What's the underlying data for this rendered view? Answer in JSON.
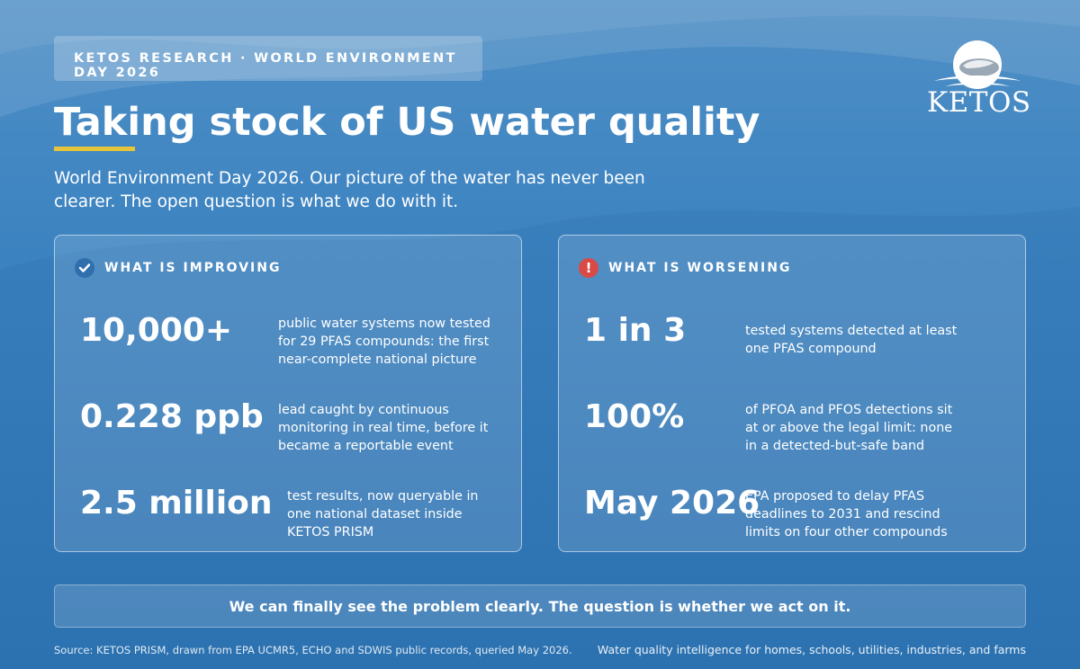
{
  "kicker": "KETOS RESEARCH · WORLD ENVIRONMENT DAY 2026",
  "logo": {
    "text": "KETOS"
  },
  "title": "Taking stock of US water quality",
  "subtitle": "World Environment Day 2026. Our picture of the water has never been clearer. The open question is what we do with it.",
  "colors": {
    "accent_underline": "#e7c53b",
    "improving_icon": "#2f6fae",
    "worsening_icon": "#d94a47"
  },
  "improving": {
    "icon": "check-icon",
    "title": "WHAT IS IMPROVING",
    "stats": [
      {
        "value": "10,000+",
        "desc": "public water systems now tested for 29 PFAS compounds: the first near-complete national picture"
      },
      {
        "value": "0.228 ppb",
        "desc": "lead caught by continuous monitoring in real time, before it became a reportable event"
      },
      {
        "value": "2.5 million",
        "desc": "test results, now queryable in one national dataset inside KETOS PRISM"
      }
    ]
  },
  "worsening": {
    "icon": "alert-icon",
    "title": "WHAT IS WORSENING",
    "stats": [
      {
        "value": "1 in 3",
        "desc": "tested systems detected at least one PFAS compound"
      },
      {
        "value": "100%",
        "desc": "of PFOA and PFOS detections sit at or above the legal limit: none in a detected-but-safe band"
      },
      {
        "value": "May 2026",
        "desc": "EPA proposed to delay PFAS deadlines to 2031 and rescind limits on four other compounds"
      }
    ]
  },
  "cta": "We can finally see the problem clearly. The question is whether we act on it.",
  "footer": {
    "source": "Source: KETOS PRISM, drawn from EPA UCMR5, ECHO and SDWIS public records, queried May 2026.",
    "tagline": "Water quality intelligence for homes, schools, utilities, industries, and farms"
  }
}
